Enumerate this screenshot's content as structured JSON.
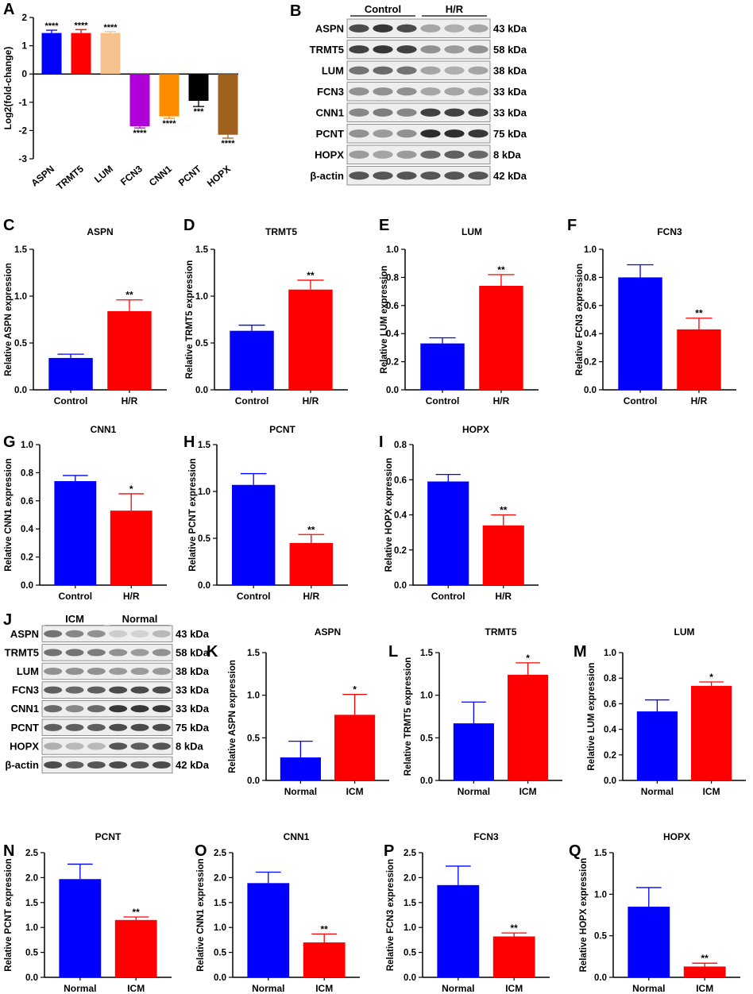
{
  "figure": {
    "colors": {
      "control": "#0000ff",
      "hr": "#ff0000",
      "axis": "#000000"
    },
    "panelA": {
      "letter": "A",
      "ylabel": "Log2(fold-change)",
      "ylim": [
        -3,
        2
      ],
      "ticks": [
        2,
        1,
        0,
        -1,
        -2,
        -3
      ],
      "bars": [
        {
          "label": "ASPN",
          "value": 1.45,
          "err": 0.1,
          "sig": "****",
          "color": "#0000ff"
        },
        {
          "label": "TRMT5",
          "value": 1.45,
          "err": 0.12,
          "sig": "****",
          "color": "#ff0000"
        },
        {
          "label": "LUM",
          "value": 1.45,
          "err": 0.05,
          "sig": "****",
          "color": "#f5c18c"
        },
        {
          "label": "FCN3",
          "value": -1.85,
          "err": 0.06,
          "sig": "****",
          "color": "#b000d8"
        },
        {
          "label": "CNN1",
          "value": -1.5,
          "err": 0.07,
          "sig": "****",
          "color": "#ff8c00"
        },
        {
          "label": "PCNT",
          "value": -0.95,
          "err": 0.2,
          "sig": "***",
          "color": "#000000"
        },
        {
          "label": "HOPX",
          "value": -2.15,
          "err": 0.12,
          "sig": "****",
          "color": "#a0611c"
        }
      ]
    },
    "panelB": {
      "letter": "B",
      "groups": [
        "Control",
        "H/R"
      ],
      "rows": [
        {
          "protein": "ASPN",
          "size": "43 kDa",
          "intensity": [
            0.8,
            0.9,
            0.8,
            0.35,
            0.3,
            0.35
          ]
        },
        {
          "protein": "TRMT5",
          "size": "58 kDa",
          "intensity": [
            0.85,
            0.9,
            0.85,
            0.45,
            0.4,
            0.45
          ]
        },
        {
          "protein": "LUM",
          "size": "38 kDa",
          "intensity": [
            0.6,
            0.65,
            0.6,
            0.35,
            0.3,
            0.35
          ]
        },
        {
          "protein": "FCN3",
          "size": "33 kDa",
          "intensity": [
            0.45,
            0.45,
            0.45,
            0.35,
            0.35,
            0.35
          ]
        },
        {
          "protein": "CNN1",
          "size": "33 kDa",
          "intensity": [
            0.5,
            0.55,
            0.5,
            0.85,
            0.85,
            0.85
          ]
        },
        {
          "protein": "PCNT",
          "size": "75 kDa",
          "intensity": [
            0.45,
            0.4,
            0.45,
            0.95,
            0.95,
            0.9
          ]
        },
        {
          "protein": "HOPX",
          "size": "8 kDa",
          "intensity": [
            0.4,
            0.35,
            0.4,
            0.65,
            0.7,
            0.65
          ]
        },
        {
          "protein": "β-actin",
          "size": "42 kDa",
          "intensity": [
            0.75,
            0.75,
            0.75,
            0.75,
            0.75,
            0.75
          ]
        }
      ]
    },
    "panelJ": {
      "letter": "J",
      "groups": [
        "ICM",
        "Normal"
      ],
      "rows": [
        {
          "protein": "ASPN",
          "size": "43 kDa",
          "intensity": [
            0.6,
            0.5,
            0.45,
            0.15,
            0.12,
            0.25
          ]
        },
        {
          "protein": "TRMT5",
          "size": "58 kDa",
          "intensity": [
            0.6,
            0.6,
            0.55,
            0.45,
            0.4,
            0.45
          ]
        },
        {
          "protein": "LUM",
          "size": "38 kDa",
          "intensity": [
            0.45,
            0.45,
            0.45,
            0.4,
            0.4,
            0.4
          ]
        },
        {
          "protein": "FCN3",
          "size": "33 kDa",
          "intensity": [
            0.7,
            0.65,
            0.7,
            0.8,
            0.8,
            0.8
          ]
        },
        {
          "protein": "CNN1",
          "size": "33 kDa",
          "intensity": [
            0.65,
            0.5,
            0.65,
            0.9,
            0.9,
            0.9
          ]
        },
        {
          "protein": "PCNT",
          "size": "75 kDa",
          "intensity": [
            0.7,
            0.7,
            0.7,
            0.8,
            0.8,
            0.8
          ]
        },
        {
          "protein": "HOPX",
          "size": "8 kDa",
          "intensity": [
            0.3,
            0.25,
            0.25,
            0.75,
            0.7,
            0.75
          ]
        },
        {
          "protein": "β-actin",
          "size": "42 kDa",
          "intensity": [
            0.8,
            0.7,
            0.75,
            0.8,
            0.75,
            0.8
          ]
        }
      ]
    }
  },
  "chart_data": [
    {
      "panel": "A",
      "type": "bar",
      "title": "",
      "ylabel": "Log2(fold-change)",
      "ylim": [
        -3,
        2
      ],
      "categories": [
        "ASPN",
        "TRMT5",
        "LUM",
        "FCN3",
        "CNN1",
        "PCNT",
        "HOPX"
      ],
      "values": [
        1.45,
        1.45,
        1.45,
        -1.85,
        -1.5,
        -0.95,
        -2.15
      ],
      "errors": [
        0.1,
        0.12,
        0.05,
        0.06,
        0.07,
        0.2,
        0.12
      ],
      "annotations": [
        "****",
        "****",
        "****",
        "****",
        "****",
        "***",
        "****"
      ]
    },
    {
      "panel": "C",
      "type": "bar",
      "title": "ASPN",
      "ylabel": "Relative ASPN expression",
      "ylim": [
        0,
        1.5
      ],
      "ticks": [
        "0.0",
        "0.5",
        "1.0",
        "1.5"
      ],
      "categories": [
        "Control",
        "H/R"
      ],
      "values": [
        0.34,
        0.84
      ],
      "errors": [
        0.04,
        0.12
      ],
      "sig": "**"
    },
    {
      "panel": "D",
      "type": "bar",
      "title": "TRMT5",
      "ylabel": "Relative TRMT5 expression",
      "ylim": [
        0,
        1.5
      ],
      "ticks": [
        "0.0",
        "0.5",
        "1.0",
        "1.5"
      ],
      "categories": [
        "Control",
        "H/R"
      ],
      "values": [
        0.63,
        1.07
      ],
      "errors": [
        0.06,
        0.1
      ],
      "sig": "**"
    },
    {
      "panel": "E",
      "type": "bar",
      "title": "LUM",
      "ylabel": "Relative LUM expression",
      "ylim": [
        0,
        1.0
      ],
      "ticks": [
        "0.0",
        "0.2",
        "0.4",
        "0.6",
        "0.8",
        "1.0"
      ],
      "categories": [
        "Control",
        "H/R"
      ],
      "values": [
        0.33,
        0.74
      ],
      "errors": [
        0.04,
        0.08
      ],
      "sig": "**"
    },
    {
      "panel": "F",
      "type": "bar",
      "title": "FCN3",
      "ylabel": "Relative FCN3 expression",
      "ylim": [
        0,
        1.0
      ],
      "ticks": [
        "0.0",
        "0.2",
        "0.4",
        "0.6",
        "0.8",
        "1.0"
      ],
      "categories": [
        "Control",
        "H/R"
      ],
      "values": [
        0.8,
        0.43
      ],
      "errors": [
        0.09,
        0.08
      ],
      "sig": "**"
    },
    {
      "panel": "G",
      "type": "bar",
      "title": "CNN1",
      "ylabel": "Relative CNN1 expression",
      "ylim": [
        0,
        1.0
      ],
      "ticks": [
        "0.0",
        "0.2",
        "0.4",
        "0.6",
        "0.8",
        "1.0"
      ],
      "categories": [
        "Control",
        "H/R"
      ],
      "values": [
        0.74,
        0.53
      ],
      "errors": [
        0.04,
        0.12
      ],
      "sig": "*"
    },
    {
      "panel": "H",
      "type": "bar",
      "title": "PCNT",
      "ylabel": "Relative PCNT expression",
      "ylim": [
        0,
        1.5
      ],
      "ticks": [
        "0.0",
        "0.5",
        "1.0",
        "1.5"
      ],
      "categories": [
        "Control",
        "H/R"
      ],
      "values": [
        1.07,
        0.45
      ],
      "errors": [
        0.12,
        0.09
      ],
      "sig": "**"
    },
    {
      "panel": "I",
      "type": "bar",
      "title": "HOPX",
      "ylabel": "Relative HOPX expression",
      "ylim": [
        0,
        0.8
      ],
      "ticks": [
        "0.0",
        "0.2",
        "0.4",
        "0.6",
        "0.8"
      ],
      "categories": [
        "Control",
        "H/R"
      ],
      "values": [
        0.59,
        0.34
      ],
      "errors": [
        0.04,
        0.06
      ],
      "sig": "**"
    },
    {
      "panel": "K",
      "type": "bar",
      "title": "ASPN",
      "ylabel": "Relative ASPN expression",
      "ylim": [
        0,
        1.5
      ],
      "ticks": [
        "0.0",
        "0.5",
        "1.0",
        "1.5"
      ],
      "categories": [
        "Normal",
        "ICM"
      ],
      "values": [
        0.27,
        0.77
      ],
      "errors": [
        0.19,
        0.24
      ],
      "sig": "*"
    },
    {
      "panel": "L",
      "type": "bar",
      "title": "TRMT5",
      "ylabel": "Relative TRMT5 expression",
      "ylim": [
        0,
        1.5
      ],
      "ticks": [
        "0.0",
        "0.5",
        "1.0",
        "1.5"
      ],
      "categories": [
        "Normal",
        "ICM"
      ],
      "values": [
        0.67,
        1.24
      ],
      "errors": [
        0.25,
        0.14
      ],
      "sig": "*"
    },
    {
      "panel": "M",
      "type": "bar",
      "title": "LUM",
      "ylabel": "Relative LUM expression",
      "ylim": [
        0,
        1.0
      ],
      "ticks": [
        "0.0",
        "0.2",
        "0.4",
        "0.6",
        "0.8",
        "1.0"
      ],
      "categories": [
        "Normal",
        "ICM"
      ],
      "values": [
        0.54,
        0.74
      ],
      "errors": [
        0.09,
        0.03
      ],
      "sig": "*"
    },
    {
      "panel": "N",
      "type": "bar",
      "title": "PCNT",
      "ylabel": "Relative PCNT expression",
      "ylim": [
        0,
        2.5
      ],
      "ticks": [
        "0.0",
        "0.5",
        "1.0",
        "1.5",
        "2.0",
        "2.5"
      ],
      "categories": [
        "Normal",
        "ICM"
      ],
      "values": [
        1.97,
        1.15
      ],
      "errors": [
        0.3,
        0.06
      ],
      "sig": "**"
    },
    {
      "panel": "O",
      "type": "bar",
      "title": "CNN1",
      "ylabel": "Relative CNN1 expression",
      "ylim": [
        0,
        2.5
      ],
      "ticks": [
        "0.0",
        "0.5",
        "1.0",
        "1.5",
        "2.0",
        "2.5"
      ],
      "categories": [
        "Normal",
        "ICM"
      ],
      "values": [
        1.89,
        0.7
      ],
      "errors": [
        0.22,
        0.17
      ],
      "sig": "**"
    },
    {
      "panel": "P",
      "type": "bar",
      "title": "FCN3",
      "ylabel": "Relative FCN3 expression",
      "ylim": [
        0,
        2.5
      ],
      "ticks": [
        "0.0",
        "0.5",
        "1.0",
        "1.5",
        "2.0",
        "2.5"
      ],
      "categories": [
        "Normal",
        "ICM"
      ],
      "values": [
        1.85,
        0.82
      ],
      "errors": [
        0.38,
        0.07
      ],
      "sig": "**"
    },
    {
      "panel": "Q",
      "type": "bar",
      "title": "HOPX",
      "ylabel": "Relative HOPX expression",
      "ylim": [
        0,
        1.5
      ],
      "ticks": [
        "0.0",
        "0.5",
        "1.0",
        "1.5"
      ],
      "categories": [
        "Normal",
        "ICM"
      ],
      "values": [
        0.85,
        0.13
      ],
      "errors": [
        0.23,
        0.04
      ],
      "sig": "**"
    }
  ]
}
